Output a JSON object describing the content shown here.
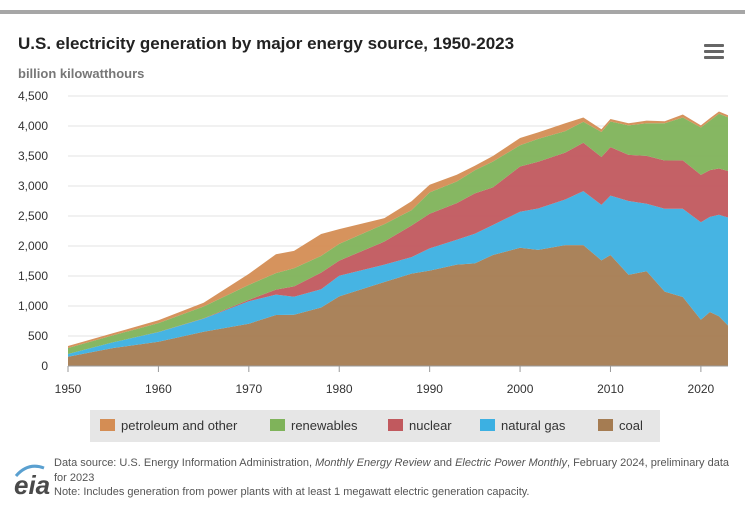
{
  "header": {
    "title": "U.S. electricity generation by major energy source, 1950-2023",
    "subtitle": "billion kilowatthours"
  },
  "footer": {
    "logo_text": "eia",
    "source_prefix": "Data source: U.S. Energy Information Administration, ",
    "source_pub1": "Monthly Energy Review",
    "source_and": " and ",
    "source_pub2": "Electric Power Monthly",
    "source_suffix": ", February 2024, preliminary data for 2023",
    "note": "Note: Includes generation from power plants with at least 1 megawatt electric generation capacity."
  },
  "colors": {
    "coal": "#a57c52",
    "natural_gas": "#3cb0e2",
    "nuclear": "#c1595e",
    "renewables": "#7fb35a",
    "petroleum": "#d48d54"
  },
  "chart_data": {
    "type": "area",
    "stacked": true,
    "title": "U.S. electricity generation by major energy source, 1950-2023",
    "ylabel": "billion kilowatthours",
    "ylim": [
      0,
      4500
    ],
    "xlim": [
      1950,
      2023
    ],
    "y_ticks": [
      0,
      500,
      1000,
      1500,
      2000,
      2500,
      3000,
      3500,
      4000,
      4500
    ],
    "y_tick_labels": [
      "0",
      "500",
      "1,000",
      "1,500",
      "2,000",
      "2,500",
      "3,000",
      "3,500",
      "4,000",
      "4,500"
    ],
    "x_ticks": [
      1950,
      1960,
      1970,
      1980,
      1990,
      2000,
      2010,
      2020
    ],
    "grid": "horizontal",
    "legend_placement": "bottom",
    "x": [
      1950,
      1955,
      1960,
      1965,
      1970,
      1973,
      1975,
      1978,
      1980,
      1985,
      1988,
      1990,
      1993,
      1995,
      1997,
      2000,
      2002,
      2005,
      2007,
      2009,
      2010,
      2012,
      2014,
      2016,
      2018,
      2020,
      2021,
      2022,
      2023
    ],
    "series": [
      {
        "name": "coal",
        "values": [
          155,
          300,
          405,
          570,
          705,
          850,
          855,
          975,
          1160,
          1400,
          1540,
          1590,
          1690,
          1710,
          1850,
          1970,
          1935,
          2015,
          2015,
          1760,
          1850,
          1520,
          1580,
          1240,
          1150,
          770,
          900,
          830,
          675
        ]
      },
      {
        "name": "natural gas",
        "values": [
          45,
          95,
          160,
          220,
          375,
          340,
          300,
          305,
          345,
          290,
          275,
          370,
          415,
          495,
          500,
          600,
          690,
          760,
          900,
          925,
          990,
          1230,
          1125,
          1380,
          1470,
          1625,
          1585,
          1690,
          1800
        ]
      },
      {
        "name": "nuclear",
        "values": [
          0,
          0,
          1,
          4,
          22,
          83,
          172,
          276,
          251,
          384,
          527,
          577,
          610,
          673,
          628,
          754,
          780,
          782,
          806,
          799,
          807,
          769,
          797,
          805,
          807,
          790,
          780,
          772,
          775
        ]
      },
      {
        "name": "renewables",
        "values": [
          100,
          117,
          149,
          198,
          250,
          275,
          303,
          280,
          279,
          291,
          255,
          357,
          360,
          384,
          430,
          356,
          380,
          358,
          350,
          417,
          427,
          492,
          544,
          620,
          714,
          791,
          825,
          912,
          895
        ]
      },
      {
        "name": "petroleum and other",
        "values": [
          34,
          35,
          48,
          62,
          184,
          314,
          289,
          365,
          246,
          100,
          148,
          127,
          113,
          75,
          92,
          120,
          109,
          130,
          70,
          45,
          42,
          34,
          43,
          35,
          50,
          35,
          40,
          38,
          35
        ]
      }
    ]
  },
  "legend": {
    "items": [
      {
        "label": "petroleum and other",
        "color": "#d48d54"
      },
      {
        "label": "renewables",
        "color": "#7fb35a"
      },
      {
        "label": "nuclear",
        "color": "#c1595e"
      },
      {
        "label": "natural gas",
        "color": "#3cb0e2"
      },
      {
        "label": "coal",
        "color": "#a57c52"
      }
    ]
  }
}
